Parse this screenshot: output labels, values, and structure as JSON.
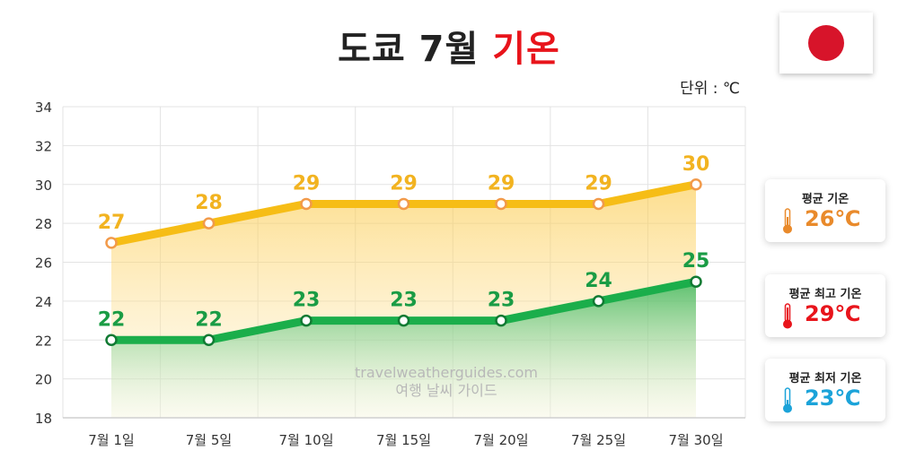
{
  "title": {
    "main": "도쿄 7월",
    "accent": "기온"
  },
  "unit": "단위 : ℃",
  "watermark": {
    "line1": "travelweatherguides.com",
    "line2": "여행 날씨 가이드"
  },
  "cards": [
    {
      "label": "평균 기온",
      "value": "26℃",
      "color": "#e98a2b"
    },
    {
      "label": "평균 최고 기온",
      "value": "29℃",
      "color": "#e8141b"
    },
    {
      "label": "평균 최저 기온",
      "value": "23℃",
      "color": "#1ba3d9"
    }
  ],
  "chart_data": {
    "type": "line",
    "categories": [
      "7월 1일",
      "7월 5일",
      "7월 10일",
      "7월 15일",
      "7월 20일",
      "7월 25일",
      "7월 30일"
    ],
    "series": [
      {
        "values": [
          27,
          28,
          29,
          29,
          29,
          29,
          30
        ],
        "color": "#f6bd16",
        "label_color": "#f2b320"
      },
      {
        "values": [
          22,
          22,
          23,
          23,
          23,
          24,
          25
        ],
        "color": "#1bae4b",
        "label_color": "#1a9c45"
      }
    ],
    "ylim": [
      18,
      34
    ],
    "yticks": [
      18,
      20,
      22,
      24,
      26,
      28,
      30,
      32,
      34
    ],
    "grid": true
  }
}
